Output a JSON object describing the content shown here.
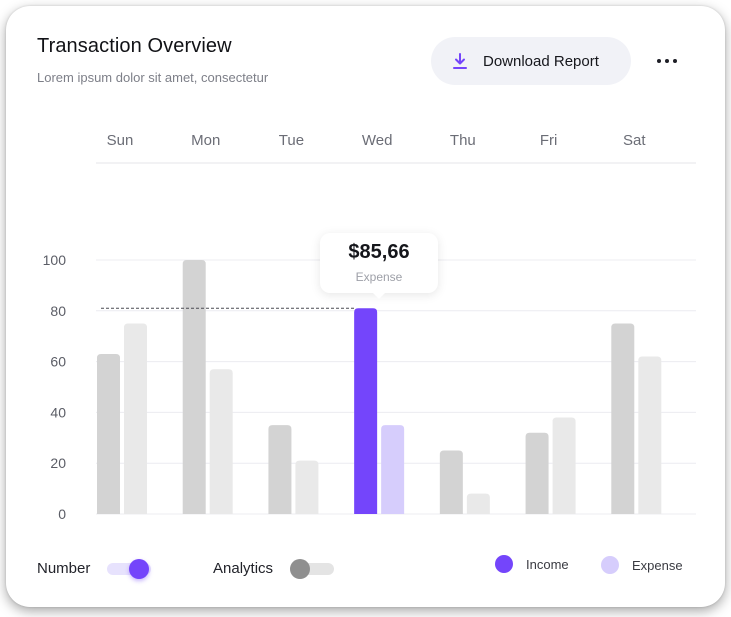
{
  "header": {
    "title": "Transaction Overview",
    "subtitle": "Lorem ipsum dolor sit amet, consectetur",
    "download_label": "Download Report"
  },
  "colors": {
    "accent": "#7445fb",
    "expense_light": "#d6cdfc",
    "bar_income": "#d3d3d3",
    "bar_expense": "#e9e9e9",
    "toggle_off": "#8f8f8f"
  },
  "tooltip": {
    "value": "$85,66",
    "label": "Expense"
  },
  "toggles": {
    "number": {
      "label": "Number",
      "state": "on"
    },
    "analytics": {
      "label": "Analytics",
      "state": "off"
    }
  },
  "legend": {
    "income": "Income",
    "expense": "Expense"
  },
  "chart_data": {
    "type": "bar",
    "categories": [
      "Sun",
      "Mon",
      "Tue",
      "Wed",
      "Thu",
      "Fri",
      "Sat"
    ],
    "series": [
      {
        "name": "Income",
        "values": [
          63,
          100,
          35,
          81,
          25,
          32,
          75
        ]
      },
      {
        "name": "Expense",
        "values": [
          75,
          57,
          21,
          35,
          8,
          38,
          62
        ]
      }
    ],
    "highlight": {
      "category": "Wed",
      "series": "Income"
    },
    "reference_line": 81,
    "ylim": [
      0,
      100
    ],
    "yticks": [
      0,
      20,
      40,
      60,
      80,
      100
    ],
    "grid": true,
    "legend_position": "bottom-right"
  }
}
